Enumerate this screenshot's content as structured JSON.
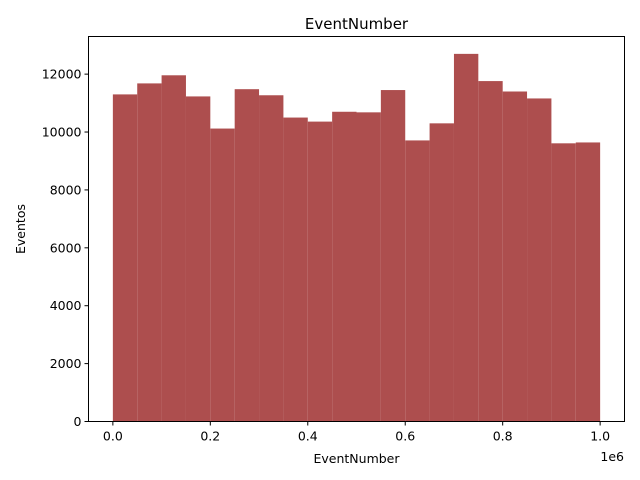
{
  "chart_data": {
    "type": "bar",
    "title": "EventNumber",
    "xlabel": "EventNumber",
    "ylabel": "Eventos",
    "x_offset_label": "1e6",
    "bar_color": "#ad4e4e",
    "xlim": [
      -0.05,
      1.05
    ],
    "ylim": [
      0,
      13300
    ],
    "xticks": [
      0.0,
      0.2,
      0.4,
      0.6,
      0.8,
      1.0
    ],
    "xtick_labels": [
      "0.0",
      "0.2",
      "0.4",
      "0.6",
      "0.8",
      "1.0"
    ],
    "yticks": [
      0,
      2000,
      4000,
      6000,
      8000,
      10000,
      12000
    ],
    "ytick_labels": [
      "0",
      "2000",
      "4000",
      "6000",
      "8000",
      "10000",
      "12000"
    ],
    "bin_edges": [
      0.0,
      0.05,
      0.1,
      0.15,
      0.2,
      0.25,
      0.3,
      0.35,
      0.4,
      0.45,
      0.5,
      0.55,
      0.6,
      0.65,
      0.7,
      0.75,
      0.8,
      0.85,
      0.9,
      0.95,
      1.0
    ],
    "values": [
      11300,
      11680,
      11960,
      11230,
      10120,
      11480,
      11270,
      10500,
      10360,
      10700,
      10680,
      11450,
      9710,
      10300,
      12700,
      11760,
      11400,
      11160,
      9610,
      9640
    ],
    "grid": false,
    "legend": "none"
  }
}
